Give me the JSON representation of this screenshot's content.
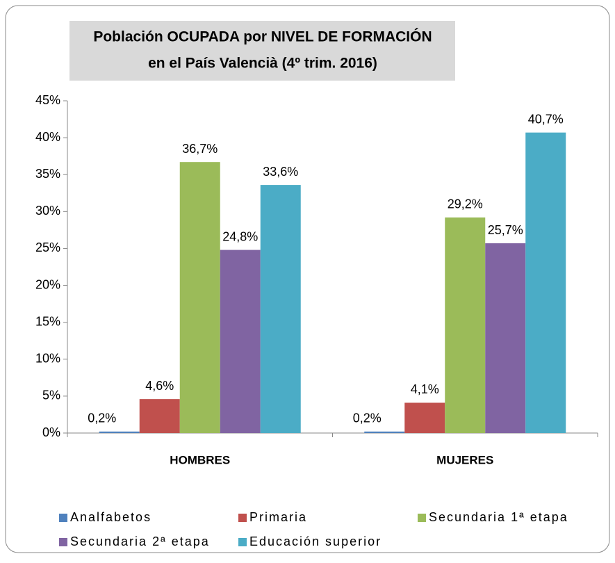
{
  "chart_data": {
    "type": "bar",
    "title": "Población OCUPADA por NIVEL DE FORMACIÓN",
    "subtitle": "en el País Valencià (4º trim. 2016)",
    "categories": [
      "HOMBRES",
      "MUJERES"
    ],
    "series": [
      {
        "name": "Analfabetos",
        "color": "#4f81bd",
        "values": [
          0.2,
          0.2
        ],
        "value_labels": [
          "0,2%",
          "0,2%"
        ]
      },
      {
        "name": "Primaria",
        "color": "#c0504d",
        "values": [
          4.6,
          4.1
        ],
        "value_labels": [
          "4,6%",
          "4,1%"
        ]
      },
      {
        "name": "Secundaria 1ª etapa",
        "color": "#9bbb59",
        "values": [
          36.7,
          29.2
        ],
        "value_labels": [
          "36,7%",
          "29,2%"
        ]
      },
      {
        "name": "Secundaria 2ª etapa",
        "color": "#8064a2",
        "values": [
          24.8,
          25.7
        ],
        "value_labels": [
          "24,8%",
          "25,7%"
        ]
      },
      {
        "name": "Educación superior",
        "color": "#4bacc6",
        "values": [
          33.6,
          40.7
        ],
        "value_labels": [
          "33,6%",
          "40,7%"
        ]
      }
    ],
    "ylim": [
      0,
      45
    ],
    "yticks": [
      {
        "value": 0,
        "label": "0%"
      },
      {
        "value": 5,
        "label": "5%"
      },
      {
        "value": 10,
        "label": "10%"
      },
      {
        "value": 15,
        "label": "15%"
      },
      {
        "value": 20,
        "label": "20%"
      },
      {
        "value": 25,
        "label": "25%"
      },
      {
        "value": 30,
        "label": "30%"
      },
      {
        "value": 35,
        "label": "35%"
      },
      {
        "value": 40,
        "label": "40%"
      },
      {
        "value": 45,
        "label": "45%"
      }
    ],
    "legend": "bottom"
  }
}
